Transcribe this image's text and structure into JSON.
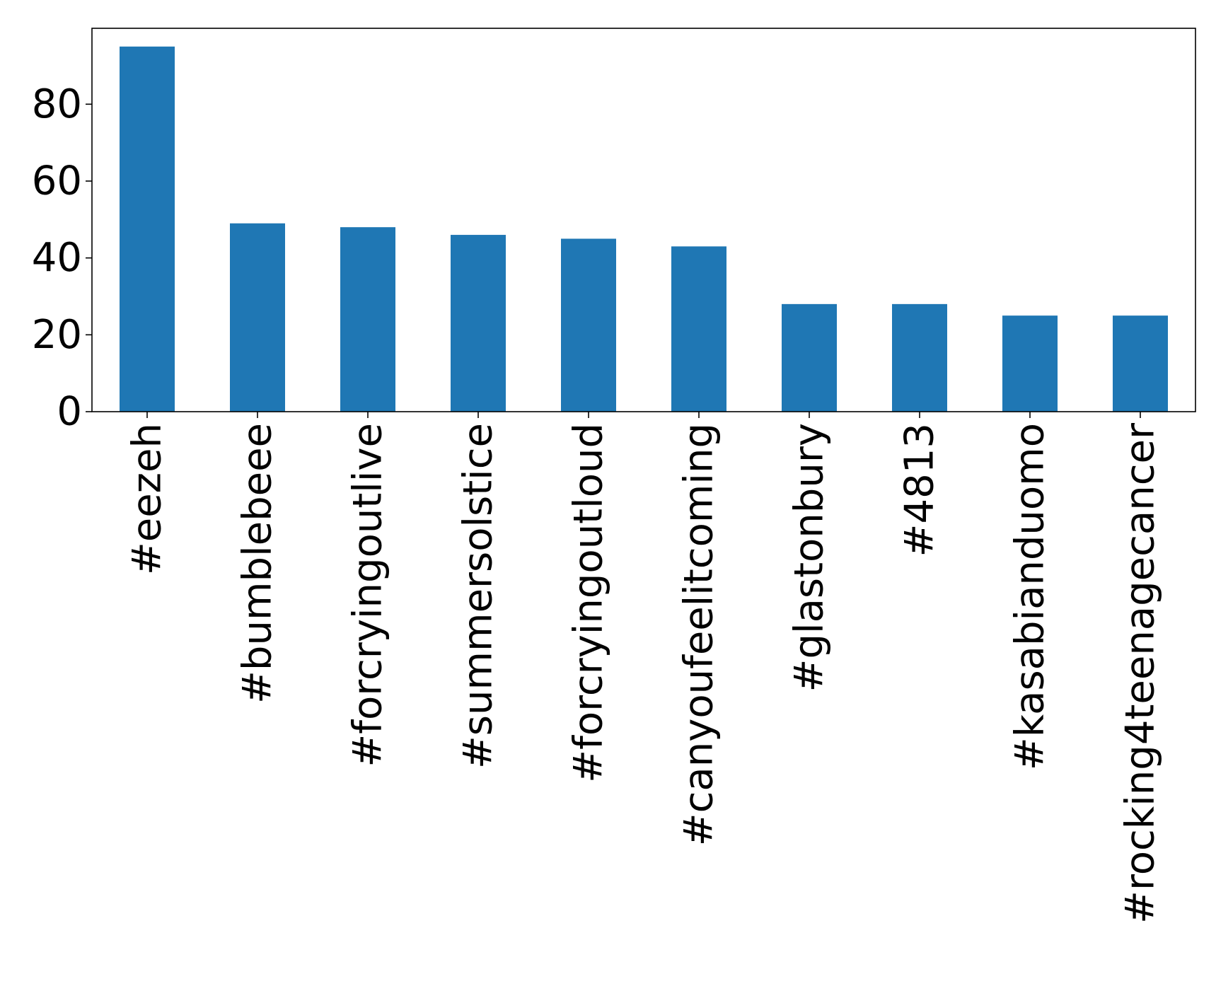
{
  "chart_data": {
    "type": "bar",
    "title": "",
    "xlabel": "",
    "ylabel": "",
    "categories": [
      "#eezeh",
      "#bumblebeee",
      "#forcryingoutlive",
      "#summersolstice",
      "#forcryingoutloud",
      "#canyoufeelitcoming",
      "#glastonbury",
      "#4813",
      "#kasabianduomo",
      "#rocking4teenagecancer"
    ],
    "values": [
      95,
      49,
      48,
      46,
      45,
      43,
      28,
      28,
      25,
      25
    ],
    "ylim": [
      0,
      99.75
    ],
    "yticks": [
      0,
      20,
      40,
      60,
      80
    ],
    "ytick_labels": [
      "0",
      "20",
      "40",
      "60",
      "80"
    ],
    "grid": false,
    "legend": "none",
    "bar_color": "#1f77b4",
    "x_tick_rotation": "vertical"
  }
}
